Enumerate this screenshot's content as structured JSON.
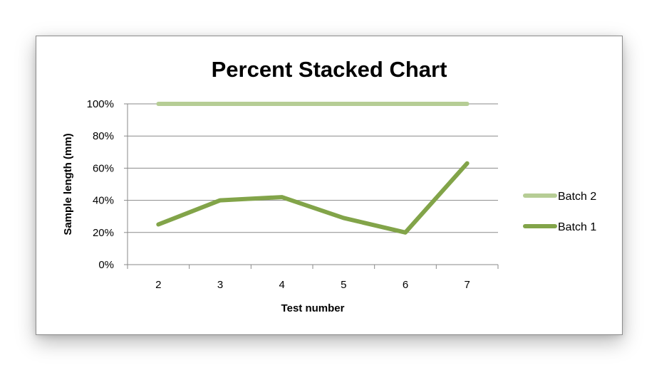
{
  "chart_data": {
    "type": "line",
    "title": "Percent Stacked Chart",
    "xlabel": "Test number",
    "ylabel": "Sample length (mm)",
    "categories": [
      "2",
      "3",
      "4",
      "5",
      "6",
      "7"
    ],
    "y_ticks": [
      "0%",
      "20%",
      "40%",
      "60%",
      "80%",
      "100%"
    ],
    "ylim": [
      0,
      100
    ],
    "grid": true,
    "legend_position": "right",
    "series": [
      {
        "name": "Batch 2",
        "values": [
          100,
          100,
          100,
          100,
          100,
          100
        ],
        "color": "#b6cd95"
      },
      {
        "name": "Batch 1",
        "values": [
          25,
          40,
          42,
          29,
          20,
          63
        ],
        "color": "#82a449"
      }
    ]
  }
}
